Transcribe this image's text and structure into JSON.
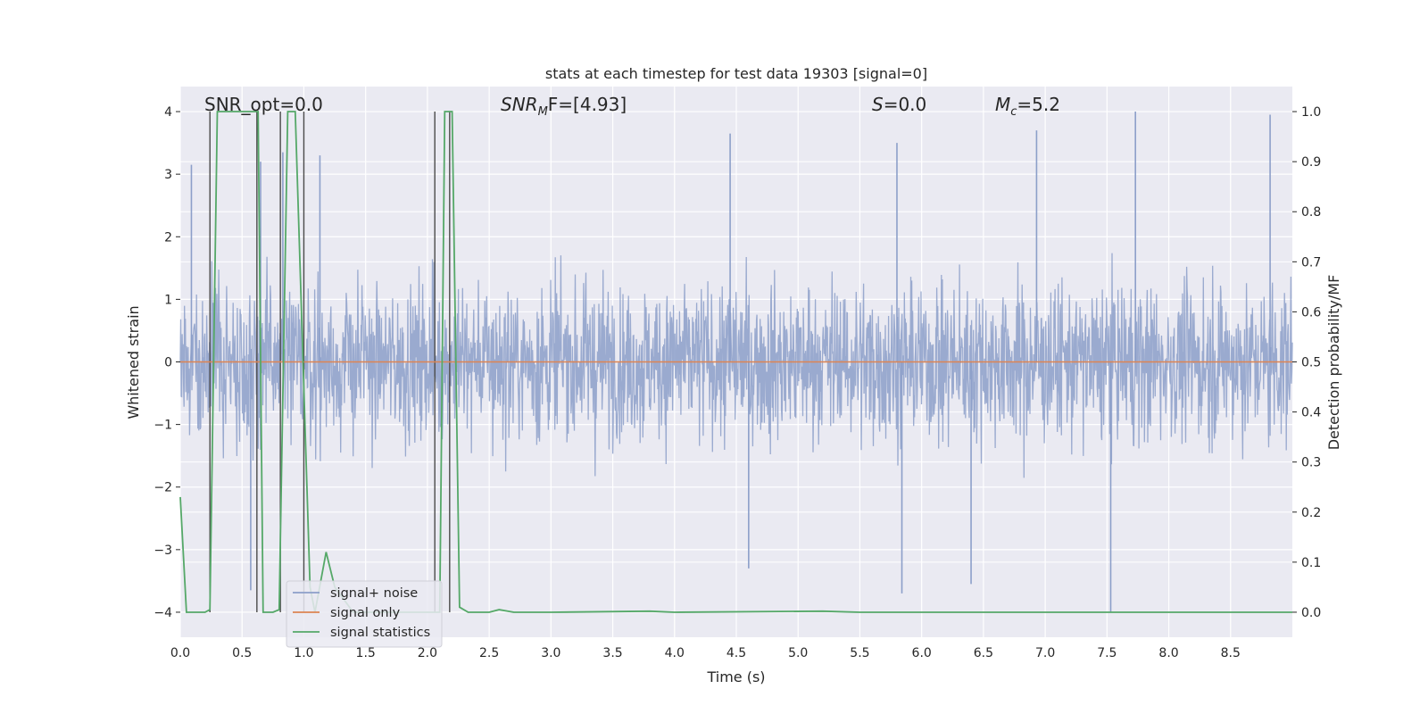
{
  "chart_data": {
    "type": "line",
    "title": "stats at each timestep for test data 19303 [signal=0]",
    "xlabel": "Time (s)",
    "ylabel": "Whitened strain",
    "ylabel_right": "Detection probability/MF",
    "xlim": [
      0.0,
      9.0
    ],
    "ylim": [
      -4.4,
      4.4
    ],
    "ylim_right": [
      -0.05,
      1.05
    ],
    "xticks": [
      "0.0",
      "0.5",
      "1.0",
      "1.5",
      "2.0",
      "2.5",
      "3.0",
      "3.5",
      "4.0",
      "4.5",
      "5.0",
      "5.5",
      "6.0",
      "6.5",
      "7.0",
      "7.5",
      "8.0",
      "8.5"
    ],
    "xtick_values": [
      0.0,
      0.5,
      1.0,
      1.5,
      2.0,
      2.5,
      3.0,
      3.5,
      4.0,
      4.5,
      5.0,
      5.5,
      6.0,
      6.5,
      7.0,
      7.5,
      8.0,
      8.5
    ],
    "yticks": [
      "−4",
      "−3",
      "−2",
      "−1",
      "0",
      "1",
      "2",
      "3",
      "4"
    ],
    "ytick_values": [
      -4,
      -3,
      -2,
      -1,
      0,
      1,
      2,
      3,
      4
    ],
    "yticks_right": [
      "0.0",
      "0.1",
      "0.2",
      "0.3",
      "0.4",
      "0.5",
      "0.6",
      "0.7",
      "0.8",
      "0.9",
      "1.0"
    ],
    "ytick_right_values": [
      0.0,
      0.1,
      0.2,
      0.3,
      0.4,
      0.5,
      0.6,
      0.7,
      0.8,
      0.9,
      1.0
    ],
    "annotations": [
      {
        "text": "SNR_opt=0.0",
        "x": 0.2,
        "y": 4.0
      },
      {
        "text": "SNR_MF=[4.93]",
        "x": 2.6,
        "y": 4.0,
        "italic_label": "SNR",
        "sub": "M",
        "after": "F=[4.93]"
      },
      {
        "text": "S=0.0",
        "x": 5.6,
        "y": 4.0,
        "italic_label": "S",
        "after": "=0.0"
      },
      {
        "text": "M_c=5.2",
        "x": 6.6,
        "y": 4.0,
        "italic_label": "M",
        "sub": "c",
        "after": "=5.2"
      }
    ],
    "series": [
      {
        "name": "signal+ noise",
        "color": "#8c9fc9",
        "noise_envelope": {
          "typical_max": 2.5,
          "typical_min": -2.5,
          "extreme_max": 4.0,
          "extreme_min": -4.0
        },
        "spikes": [
          {
            "x": 0.09,
            "y": 3.15
          },
          {
            "x": 0.65,
            "y": 3.2
          },
          {
            "x": 0.83,
            "y": 3.35
          },
          {
            "x": 1.13,
            "y": 3.3
          },
          {
            "x": 4.45,
            "y": 3.65
          },
          {
            "x": 5.8,
            "y": 3.5
          },
          {
            "x": 6.93,
            "y": 3.7
          },
          {
            "x": 7.73,
            "y": 4.0
          },
          {
            "x": 8.82,
            "y": 3.95
          },
          {
            "x": 0.57,
            "y": -3.65
          },
          {
            "x": 5.84,
            "y": -3.7
          },
          {
            "x": 6.4,
            "y": -3.55
          },
          {
            "x": 7.53,
            "y": -4.0
          },
          {
            "x": 4.6,
            "y": -3.3
          }
        ]
      },
      {
        "name": "signal only",
        "color": "#dd8452",
        "x": [
          0.0,
          9.0
        ],
        "y": [
          0.0,
          0.0
        ]
      },
      {
        "name": "signal statistics",
        "color": "#55a868",
        "axis": "right",
        "x": [
          0.0,
          0.05,
          0.2,
          0.24,
          0.3,
          0.63,
          0.67,
          0.75,
          0.8,
          0.87,
          0.93,
          1.05,
          1.09,
          1.18,
          1.25,
          1.4,
          1.6,
          1.8,
          2.0,
          2.06,
          2.1,
          2.14,
          2.2,
          2.26,
          2.33,
          2.5,
          2.58,
          2.7,
          3.0,
          3.8,
          4.0,
          5.2,
          5.5,
          9.0
        ],
        "y": [
          0.23,
          0.0,
          0.0,
          0.005,
          1.0,
          1.0,
          0.0,
          0.0,
          0.005,
          1.0,
          1.0,
          0.05,
          0.0,
          0.12,
          0.05,
          0.0,
          0.0,
          0.0,
          0.0,
          0.0,
          0.0,
          1.0,
          1.0,
          0.01,
          0.0,
          0.0,
          0.005,
          0.0,
          0.0,
          0.002,
          0.0,
          0.002,
          0.0,
          0.0
        ]
      }
    ],
    "vertical_markers": [
      {
        "x": 0.24,
        "y_from": -4.0,
        "y_to": 4.0
      },
      {
        "x": 0.62,
        "y_from": -4.0,
        "y_to": 4.0
      },
      {
        "x": 0.81,
        "y_from": -4.0,
        "y_to": 4.0
      },
      {
        "x": 1.0,
        "y_from": -4.0,
        "y_to": 4.0
      },
      {
        "x": 2.06,
        "y_from": -4.0,
        "y_to": 4.0
      },
      {
        "x": 2.18,
        "y_from": -4.0,
        "y_to": 4.0
      }
    ],
    "legend": {
      "placement": "lower-left",
      "entries": [
        {
          "label": "signal+ noise",
          "color": "#8c9fc9"
        },
        {
          "label": "signal only",
          "color": "#dd8452"
        },
        {
          "label": "signal statistics",
          "color": "#55a868"
        }
      ]
    },
    "grid": true,
    "background": "#eaeaf2"
  }
}
